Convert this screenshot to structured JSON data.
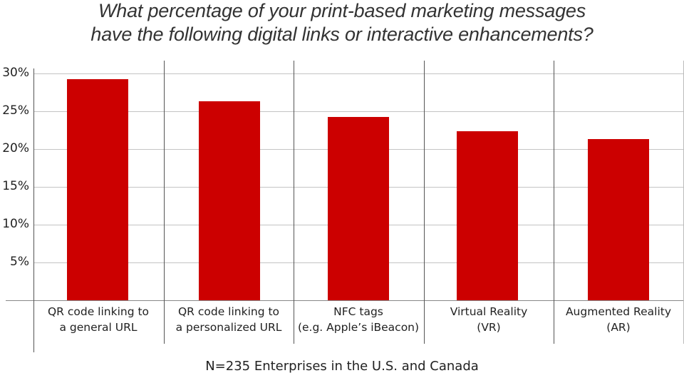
{
  "chart_data": {
    "type": "bar",
    "title": "What percentage of your print-based marketing messages have the following digital links or interactive enhancements?",
    "title_lines": [
      "What percentage of your print-based marketing messages",
      "have the following digital links or interactive enhancements?"
    ],
    "categories": [
      "QR code linking to a general URL",
      "QR code linking to a personalized URL",
      "NFC tags (e.g. Apple’s iBeacon)",
      "Virtual Reality (VR)",
      "Augmented Reality (AR)"
    ],
    "category_lines": [
      [
        "QR code linking to",
        "a general URL"
      ],
      [
        "QR code linking to",
        "a personalized URL"
      ],
      [
        "NFC tags",
        "(e.g. Apple’s iBeacon)"
      ],
      [
        "Virtual Reality",
        "(VR)"
      ],
      [
        "Augmented Reality",
        "(AR)"
      ]
    ],
    "values": [
      29.2,
      26.3,
      24.2,
      22.4,
      21.3
    ],
    "xlabel": "",
    "ylabel": "",
    "ylim": [
      0,
      30
    ],
    "yticks": [
      "5%",
      "10%",
      "15%",
      "20%",
      "25%",
      "30%"
    ],
    "grid": true,
    "legend": null,
    "bar_color": "#cc0000",
    "footnote": "N=235 Enterprises in the U.S. and Canada"
  }
}
